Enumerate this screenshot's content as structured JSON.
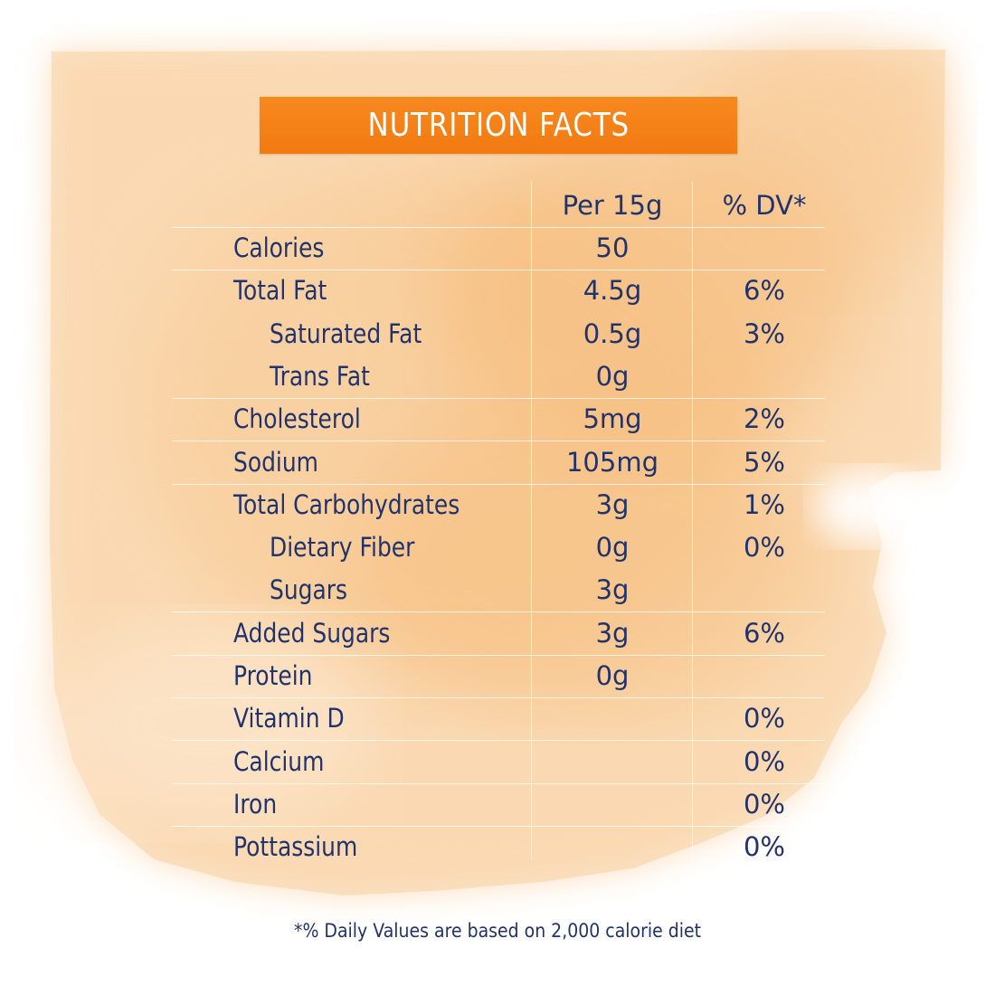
{
  "title": "NUTRITION FACTS",
  "headers": {
    "amount": "Per 15g",
    "dv": "% DV*"
  },
  "rows": [
    {
      "label": "Calories",
      "amount": "50",
      "dv": "",
      "indent": false
    },
    {
      "label": "Total Fat",
      "amount": "4.5g",
      "dv": "6%",
      "indent": false
    },
    {
      "label": "Saturated Fat",
      "amount": "0.5g",
      "dv": "3%",
      "indent": true
    },
    {
      "label": "Trans Fat",
      "amount": "0g",
      "dv": "",
      "indent": true
    },
    {
      "label": "Cholesterol",
      "amount": "5mg",
      "dv": "2%",
      "indent": false
    },
    {
      "label": "Sodium",
      "amount": "105mg",
      "dv": "5%",
      "indent": false
    },
    {
      "label": "Total Carbohydrates",
      "amount": "3g",
      "dv": "1%",
      "indent": false
    },
    {
      "label": "Dietary Fiber",
      "amount": "0g",
      "dv": "0%",
      "indent": true
    },
    {
      "label": "Sugars",
      "amount": "3g",
      "dv": "",
      "indent": true
    },
    {
      "label": "Added Sugars",
      "amount": "3g",
      "dv": "6%",
      "indent": false
    },
    {
      "label": "Protein",
      "amount": "0g",
      "dv": "",
      "indent": false
    },
    {
      "label": "Vitamin D",
      "amount": "",
      "dv": "0%",
      "indent": false
    },
    {
      "label": "Calcium",
      "amount": "",
      "dv": "0%",
      "indent": false
    },
    {
      "label": "Iron",
      "amount": "",
      "dv": "0%",
      "indent": false
    },
    {
      "label": "Pottassium",
      "amount": "",
      "dv": "0%",
      "indent": false
    }
  ],
  "footnote": "*% Daily Values are based on 2,000 calorie diet",
  "colors": {
    "accent": "#f57f17",
    "text": "#22336b",
    "wash": "#f9c98e"
  }
}
